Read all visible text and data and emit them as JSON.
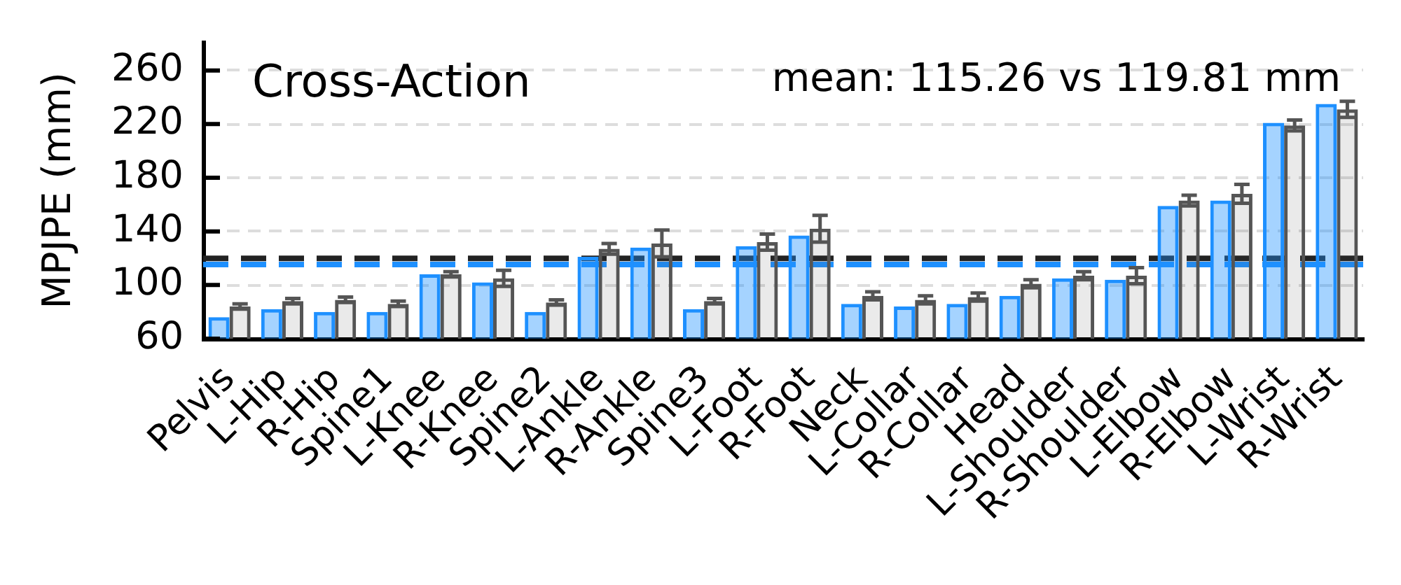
{
  "chart_data": {
    "type": "bar",
    "title": "Cross-Action",
    "subtitle": "mean: 115.26 vs 119.81 mm",
    "ylabel": "MPJPE (mm)",
    "categories": [
      "Pelvis",
      "L-Hip",
      "R-Hip",
      "Spine1",
      "L-Knee",
      "R-Knee",
      "Spine2",
      "L-Ankle",
      "R-Ankle",
      "Spine3",
      "L-Foot",
      "R-Foot",
      "Neck",
      "L-Collar",
      "R-Collar",
      "Head",
      "L-Shoulder",
      "R-Shoulder",
      "L-Elbow",
      "R-Elbow",
      "L-Wrist",
      "R-Wrist"
    ],
    "series": [
      {
        "color": "#1e90ff",
        "values": [
          76,
          82,
          80,
          80,
          108,
          102,
          80,
          121,
          128,
          82,
          129,
          137,
          86,
          84,
          86,
          92,
          105,
          104,
          159,
          163,
          221,
          235
        ]
      },
      {
        "color": "#555555",
        "values": [
          84,
          88,
          89,
          86,
          108,
          105,
          87,
          127,
          131,
          88,
          132,
          142,
          92,
          89,
          91,
          101,
          107,
          107,
          163,
          168,
          219,
          231
        ],
        "errors": [
          2,
          2,
          2,
          2,
          2,
          6,
          2,
          4,
          10,
          2,
          6,
          10,
          3,
          3,
          3,
          3,
          3,
          6,
          4,
          7,
          4,
          6
        ]
      }
    ],
    "ylim": [
      60,
      281
    ],
    "yticks": [
      60,
      100,
      140,
      180,
      220,
      260
    ],
    "grid": "y",
    "ref_lines": [
      {
        "axis": "y",
        "value": 115.26,
        "color": "#1e90ff",
        "line_style": "dashed"
      },
      {
        "axis": "y",
        "value": 119.81,
        "color": "#222222",
        "line_style": "dashed"
      }
    ]
  }
}
